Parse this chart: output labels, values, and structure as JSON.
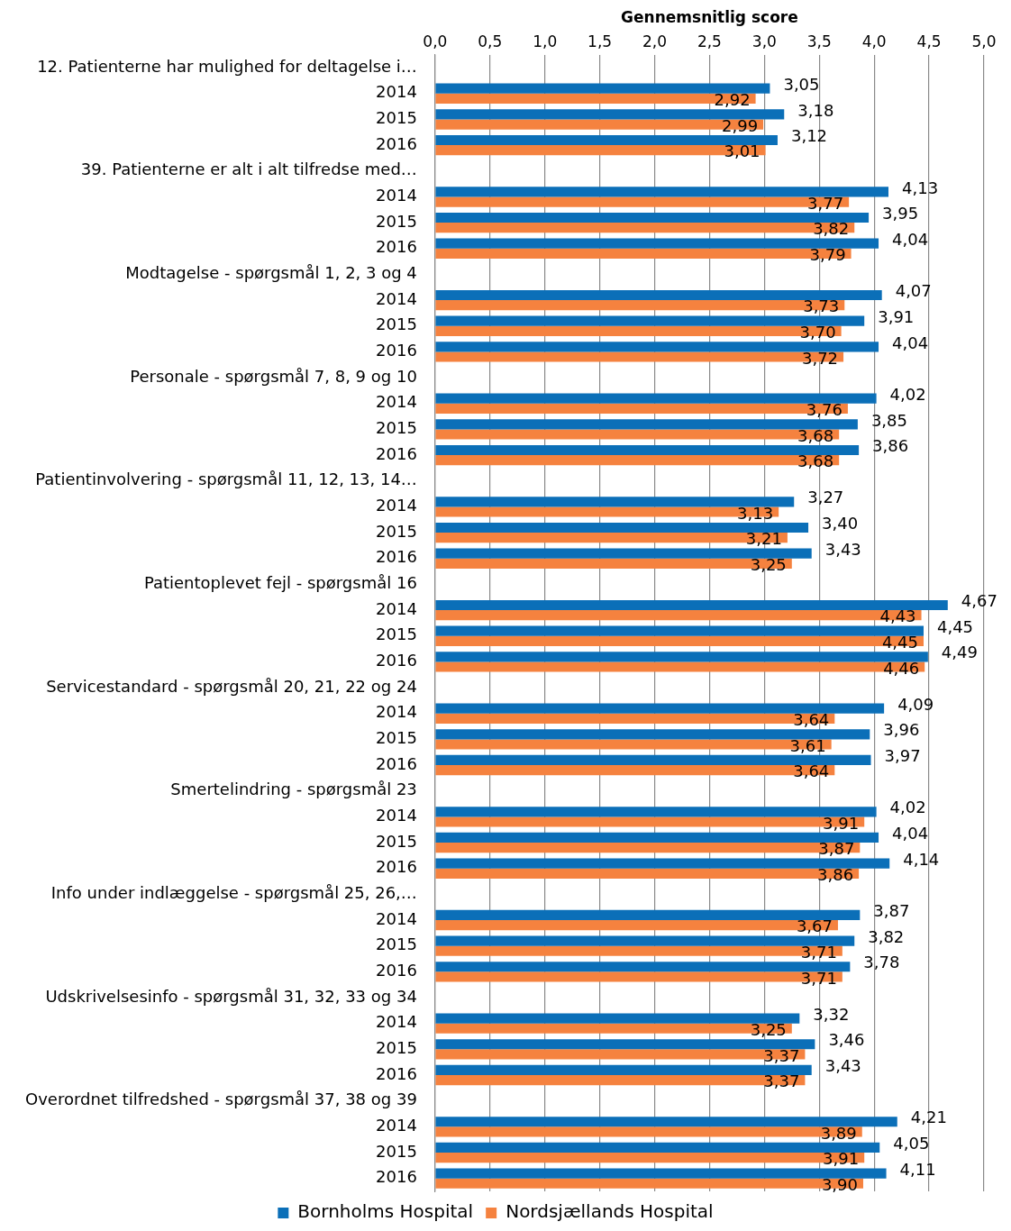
{
  "chart_data": {
    "type": "bar",
    "orientation": "horizontal",
    "xlabel": "Gennemsnitlig score",
    "categories": [
      "12. Patienterne har mulighed for deltagelse i…",
      "2014",
      "2015",
      "2016",
      "39. Patienterne er alt i alt tilfredse med…",
      "2014",
      "2015",
      "2016",
      "Modtagelse - spørgsmål 1, 2, 3 og 4",
      "2014",
      "2015",
      "2016",
      "Personale - spørgsmål 7, 8, 9 og 10",
      "2014",
      "2015",
      "2016",
      "Patientinvolvering - spørgsmål 11, 12, 13, 14…",
      "2014",
      "2015",
      "2016",
      "Patientoplevet fejl - spørgsmål 16",
      "2014",
      "2015",
      "2016",
      "Servicestandard - spørgsmål 20, 21, 22 og 24",
      "2014",
      "2015",
      "2016",
      "Smertelindring - spørgsmål 23",
      "2014",
      "2015",
      "2016",
      "Info under indlæggelse - spørgsmål 25, 26,…",
      "2014",
      "2015",
      "2016",
      "Udskrivelsesinfo - spørgsmål 31, 32, 33 og 34",
      "2014",
      "2015",
      "2016",
      "Overordnet tilfredshed - spørgsmål 37, 38 og 39",
      "2014",
      "2015",
      "2016"
    ],
    "series": [
      {
        "name": "Bornholms Hospital",
        "color": "#0b6fb8",
        "values": [
          null,
          3.05,
          3.18,
          3.12,
          null,
          4.13,
          3.95,
          4.04,
          null,
          4.07,
          3.91,
          4.04,
          null,
          4.02,
          3.85,
          3.86,
          null,
          3.27,
          3.4,
          3.43,
          null,
          4.67,
          4.45,
          4.49,
          null,
          4.09,
          3.96,
          3.97,
          null,
          4.02,
          4.04,
          4.14,
          null,
          3.87,
          3.82,
          3.78,
          null,
          3.32,
          3.46,
          3.43,
          null,
          4.21,
          4.05,
          4.11
        ],
        "value_labels": [
          null,
          "3,05",
          "3,18",
          "3,12",
          null,
          "4,13",
          "3,95",
          "4,04",
          null,
          "4,07",
          "3,91",
          "4,04",
          null,
          "4,02",
          "3,85",
          "3,86",
          null,
          "3,27",
          "3,40",
          "3,43",
          null,
          "4,67",
          "4,45",
          "4,49",
          null,
          "4,09",
          "3,96",
          "3,97",
          null,
          "4,02",
          "4,04",
          "4,14",
          null,
          "3,87",
          "3,82",
          "3,78",
          null,
          "3,32",
          "3,46",
          "3,43",
          null,
          "4,21",
          "4,05",
          "4,11"
        ]
      },
      {
        "name": "Nordsjællands Hospital",
        "color": "#f5823f",
        "values": [
          null,
          2.92,
          2.99,
          3.01,
          null,
          3.77,
          3.82,
          3.79,
          null,
          3.73,
          3.7,
          3.72,
          null,
          3.76,
          3.68,
          3.68,
          null,
          3.13,
          3.21,
          3.25,
          null,
          4.43,
          4.45,
          4.46,
          null,
          3.64,
          3.61,
          3.64,
          null,
          3.91,
          3.87,
          3.86,
          null,
          3.67,
          3.71,
          3.71,
          null,
          3.25,
          3.37,
          3.37,
          null,
          3.89,
          3.91,
          3.9
        ],
        "value_labels": [
          null,
          "2,92",
          "2,99",
          "3,01",
          null,
          "3,77",
          "3,82",
          "3,79",
          null,
          "3,73",
          "3,70",
          "3,72",
          null,
          "3,76",
          "3,68",
          "3,68",
          null,
          "3,13",
          "3,21",
          "3,25",
          null,
          "4,43",
          "4,45",
          "4,46",
          null,
          "3,64",
          "3,61",
          "3,64",
          null,
          "3,91",
          "3,87",
          "3,86",
          null,
          "3,67",
          "3,71",
          "3,71",
          null,
          "3,25",
          "3,37",
          "3,37",
          null,
          "3,89",
          "3,91",
          "3,90"
        ]
      }
    ],
    "xlim": [
      0,
      5
    ],
    "xticks": [
      {
        "value": 0,
        "label": "0,0"
      },
      {
        "value": 0.5,
        "label": "0,5"
      },
      {
        "value": 1,
        "label": "1,0"
      },
      {
        "value": 1.5,
        "label": "1,5"
      },
      {
        "value": 2,
        "label": "2,0"
      },
      {
        "value": 2.5,
        "label": "2,5"
      },
      {
        "value": 3,
        "label": "3,0"
      },
      {
        "value": 3.5,
        "label": "3,5"
      },
      {
        "value": 4,
        "label": "4,0"
      },
      {
        "value": 4.5,
        "label": "4,5"
      },
      {
        "value": 5,
        "label": "5,0"
      }
    ],
    "grid": "x",
    "legend": "bottom"
  }
}
